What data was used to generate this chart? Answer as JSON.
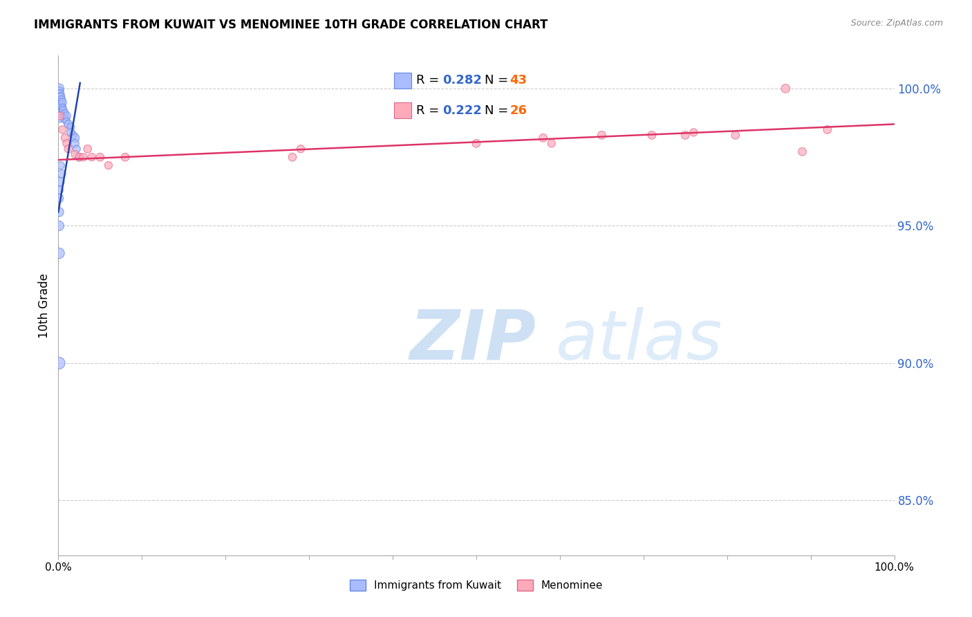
{
  "title": "IMMIGRANTS FROM KUWAIT VS MENOMINEE 10TH GRADE CORRELATION CHART",
  "source": "Source: ZipAtlas.com",
  "ylabel": "10th Grade",
  "xlim": [
    0.0,
    1.0
  ],
  "ylim": [
    0.83,
    1.012
  ],
  "yticks": [
    0.85,
    0.9,
    0.95,
    1.0
  ],
  "ytick_labels": [
    "85.0%",
    "90.0%",
    "95.0%",
    "100.0%"
  ],
  "xticks": [
    0.0,
    0.1,
    0.2,
    0.3,
    0.4,
    0.5,
    0.6,
    0.7,
    0.8,
    0.9,
    1.0
  ],
  "xtick_labels": [
    "0.0%",
    "",
    "",
    "",
    "",
    "",
    "",
    "",
    "",
    "",
    "100.0%"
  ],
  "blue_scatter_x": [
    0.001,
    0.001,
    0.001,
    0.001,
    0.001,
    0.001,
    0.001,
    0.002,
    0.002,
    0.002,
    0.002,
    0.002,
    0.002,
    0.003,
    0.003,
    0.003,
    0.003,
    0.004,
    0.004,
    0.005,
    0.005,
    0.006,
    0.008,
    0.008,
    0.01,
    0.01,
    0.012,
    0.015,
    0.015,
    0.018,
    0.02,
    0.02,
    0.022,
    0.025,
    0.003,
    0.004,
    0.002,
    0.001,
    0.001,
    0.001,
    0.001,
    0.001,
    0.001
  ],
  "blue_scatter_y": [
    1.0,
    0.999,
    0.998,
    0.997,
    0.996,
    0.995,
    0.994,
    0.998,
    0.997,
    0.995,
    0.993,
    0.991,
    0.989,
    0.997,
    0.995,
    0.993,
    0.991,
    0.996,
    0.994,
    0.995,
    0.993,
    0.992,
    0.991,
    0.989,
    0.99,
    0.988,
    0.987,
    0.986,
    0.984,
    0.983,
    0.982,
    0.98,
    0.978,
    0.975,
    0.972,
    0.969,
    0.966,
    0.963,
    0.96,
    0.955,
    0.95,
    0.94,
    0.9
  ],
  "blue_scatter_size": [
    100,
    80,
    70,
    60,
    90,
    80,
    70,
    80,
    70,
    60,
    80,
    70,
    60,
    70,
    60,
    80,
    70,
    60,
    80,
    70,
    60,
    70,
    60,
    80,
    70,
    60,
    70,
    60,
    70,
    60,
    80,
    70,
    60,
    70,
    60,
    70,
    80,
    70,
    80,
    90,
    100,
    120,
    150
  ],
  "pink_scatter_x": [
    0.002,
    0.005,
    0.008,
    0.01,
    0.012,
    0.02,
    0.025,
    0.03,
    0.035,
    0.04,
    0.05,
    0.06,
    0.08,
    0.28,
    0.29,
    0.5,
    0.58,
    0.59,
    0.65,
    0.71,
    0.75,
    0.76,
    0.81,
    0.87,
    0.89,
    0.92
  ],
  "pink_scatter_y": [
    0.99,
    0.985,
    0.982,
    0.98,
    0.978,
    0.976,
    0.975,
    0.975,
    0.978,
    0.975,
    0.975,
    0.972,
    0.975,
    0.975,
    0.978,
    0.98,
    0.982,
    0.98,
    0.983,
    0.983,
    0.983,
    0.984,
    0.983,
    1.0,
    0.977,
    0.985
  ],
  "pink_scatter_size": [
    70,
    65,
    70,
    65,
    70,
    65,
    70,
    65,
    70,
    65,
    70,
    65,
    70,
    70,
    65,
    70,
    70,
    65,
    70,
    70,
    70,
    65,
    70,
    80,
    70,
    70
  ],
  "blue_trend_x0": 0.0,
  "blue_trend_x1": 0.026,
  "blue_trend_y0": 0.955,
  "blue_trend_y1": 1.002,
  "pink_trend_x0": 0.0,
  "pink_trend_x1": 1.0,
  "pink_trend_y0": 0.974,
  "pink_trend_y1": 0.987,
  "blue_color": "#aabbff",
  "blue_edge": "#6688dd",
  "pink_color": "#ffaabb",
  "pink_edge": "#dd6688",
  "blue_trend_color": "#2244aa",
  "pink_trend_color": "#dd3366",
  "R_blue": "0.282",
  "N_blue": "43",
  "R_pink": "0.222",
  "N_pink": "26",
  "legend_blue_label": "Immigrants from Kuwait",
  "legend_pink_label": "Menominee",
  "watermark_zip": "ZIP",
  "watermark_atlas": "atlas",
  "background_color": "#ffffff",
  "grid_color": "#cccccc"
}
